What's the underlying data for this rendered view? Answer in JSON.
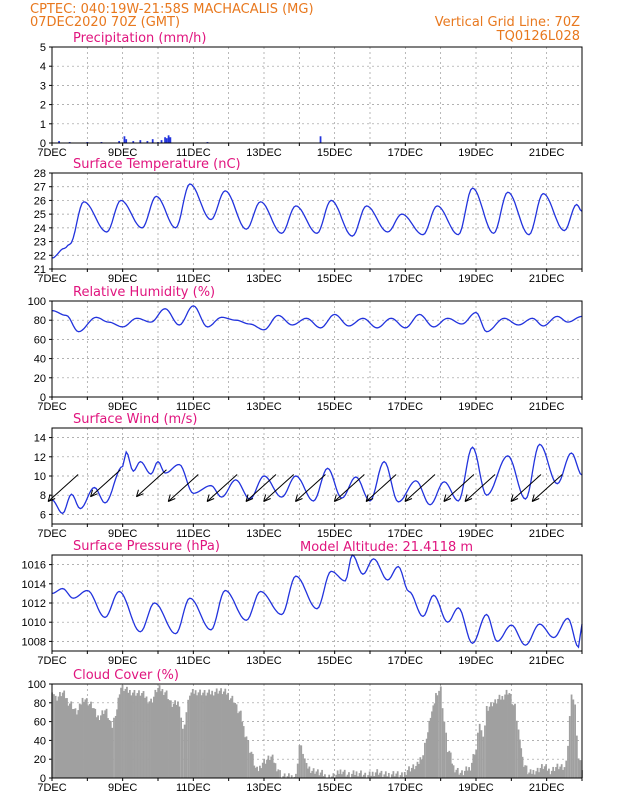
{
  "header": {
    "station": "CPTEC:   040:19W-21:58S   MACHACALIS (MG)",
    "date": "07DEC2020 70Z (GMT)",
    "grid_info": "Vertical Grid Line: 70Z",
    "model_code": "TQ0126L028",
    "model_altitude": "Model Altitude: 21.4118 m"
  },
  "colors": {
    "header": "#e8781e",
    "title": "#e0147e",
    "line": "#2233dd",
    "cloud": "#a0a0a0"
  },
  "x_axis": {
    "day_start": 7,
    "day_end": 22,
    "labels": [
      "7DEC",
      "9DEC",
      "11DEC",
      "13DEC",
      "15DEC",
      "17DEC",
      "19DEC",
      "21DEC"
    ]
  },
  "chart_data": [
    {
      "id": "precip",
      "type": "bar",
      "title": "Precipitation (mm/h)",
      "ylim": [
        0,
        5
      ],
      "yticks": [
        0,
        1,
        2,
        3,
        4,
        5
      ],
      "points": [
        [
          7.2,
          0.1
        ],
        [
          7.5,
          0.05
        ],
        [
          8.0,
          0.05
        ],
        [
          8.4,
          0.05
        ],
        [
          8.9,
          0.1
        ],
        [
          9.05,
          0.35
        ],
        [
          9.1,
          0.2
        ],
        [
          9.3,
          0.1
        ],
        [
          9.5,
          0.15
        ],
        [
          9.7,
          0.1
        ],
        [
          9.85,
          0.2
        ],
        [
          10.0,
          0.05
        ],
        [
          10.1,
          0.15
        ],
        [
          10.2,
          0.3
        ],
        [
          10.25,
          0.25
        ],
        [
          10.3,
          0.4
        ],
        [
          10.35,
          0.3
        ],
        [
          11.4,
          0.05
        ],
        [
          14.6,
          0.35
        ]
      ]
    },
    {
      "id": "temp",
      "type": "line",
      "title": "Surface Temperature (nC)",
      "ylim": [
        21,
        28
      ],
      "yticks": [
        21,
        22,
        23,
        24,
        25,
        26,
        27,
        28
      ],
      "peaks": [
        [
          7.0,
          21.8
        ],
        [
          7.35,
          22.5
        ],
        [
          7.5,
          22.8
        ],
        [
          7.9,
          25.9
        ],
        [
          8.55,
          23.7
        ],
        [
          8.95,
          26.0
        ],
        [
          9.55,
          24.0
        ],
        [
          9.95,
          26.3
        ],
        [
          10.5,
          24.0
        ],
        [
          10.9,
          27.2
        ],
        [
          11.5,
          24.6
        ],
        [
          11.9,
          26.7
        ],
        [
          12.5,
          23.9
        ],
        [
          12.9,
          25.9
        ],
        [
          13.5,
          23.6
        ],
        [
          13.9,
          25.6
        ],
        [
          14.5,
          23.6
        ],
        [
          14.9,
          26.0
        ],
        [
          15.5,
          23.4
        ],
        [
          15.9,
          25.6
        ],
        [
          16.5,
          23.7
        ],
        [
          16.9,
          25.0
        ],
        [
          17.5,
          23.5
        ],
        [
          17.9,
          25.6
        ],
        [
          18.5,
          23.5
        ],
        [
          18.9,
          26.9
        ],
        [
          19.5,
          23.6
        ],
        [
          19.9,
          26.6
        ],
        [
          20.5,
          23.5
        ],
        [
          20.9,
          26.5
        ],
        [
          21.5,
          23.8
        ],
        [
          21.85,
          25.7
        ],
        [
          22.0,
          25.2
        ]
      ]
    },
    {
      "id": "rh",
      "type": "line",
      "title": "Relative Humidity (%)",
      "ylim": [
        0,
        100
      ],
      "yticks": [
        0,
        20,
        40,
        60,
        80,
        100
      ],
      "peaks": [
        [
          7.0,
          90
        ],
        [
          7.4,
          85
        ],
        [
          7.75,
          68
        ],
        [
          8.25,
          83
        ],
        [
          8.6,
          78
        ],
        [
          9.0,
          73
        ],
        [
          9.4,
          82
        ],
        [
          9.8,
          78
        ],
        [
          10.2,
          92
        ],
        [
          10.6,
          75
        ],
        [
          11.0,
          95
        ],
        [
          11.4,
          73
        ],
        [
          11.8,
          83
        ],
        [
          12.2,
          80
        ],
        [
          12.6,
          76
        ],
        [
          13.0,
          70
        ],
        [
          13.4,
          85
        ],
        [
          13.8,
          75
        ],
        [
          14.2,
          82
        ],
        [
          14.6,
          72
        ],
        [
          15.0,
          86
        ],
        [
          15.4,
          74
        ],
        [
          15.8,
          82
        ],
        [
          16.2,
          72
        ],
        [
          16.6,
          82
        ],
        [
          17.0,
          72
        ],
        [
          17.4,
          86
        ],
        [
          17.8,
          73
        ],
        [
          18.2,
          82
        ],
        [
          18.6,
          76
        ],
        [
          19.0,
          88
        ],
        [
          19.3,
          68
        ],
        [
          19.8,
          82
        ],
        [
          20.2,
          75
        ],
        [
          20.6,
          82
        ],
        [
          20.9,
          74
        ],
        [
          21.3,
          84
        ],
        [
          21.6,
          78
        ],
        [
          22.0,
          84
        ]
      ]
    },
    {
      "id": "wind",
      "type": "line",
      "title": "Surface Wind (m/s)",
      "ylim": [
        5,
        15
      ],
      "yticks": [
        6,
        8,
        10,
        12,
        14
      ],
      "peaks": [
        [
          7.0,
          7.5
        ],
        [
          7.3,
          6.1
        ],
        [
          7.55,
          8.1
        ],
        [
          7.8,
          6.6
        ],
        [
          8.2,
          8.8
        ],
        [
          8.5,
          7.2
        ],
        [
          9.0,
          11.0
        ],
        [
          9.1,
          12.5
        ],
        [
          9.3,
          10.5
        ],
        [
          9.5,
          11.5
        ],
        [
          9.8,
          10.2
        ],
        [
          10.0,
          11.5
        ],
        [
          10.2,
          10.3
        ],
        [
          10.6,
          11.2
        ],
        [
          11.0,
          8.2
        ],
        [
          11.5,
          9.0
        ],
        [
          11.8,
          7.8
        ],
        [
          12.2,
          9.6
        ],
        [
          12.6,
          7.6
        ],
        [
          13.0,
          10.0
        ],
        [
          13.5,
          7.8
        ],
        [
          13.9,
          10.0
        ],
        [
          14.4,
          7.4
        ],
        [
          14.8,
          10.8
        ],
        [
          15.2,
          7.7
        ],
        [
          15.6,
          9.9
        ],
        [
          16.0,
          7.4
        ],
        [
          16.4,
          11.5
        ],
        [
          16.8,
          7.3
        ],
        [
          17.3,
          9.5
        ],
        [
          17.7,
          7.0
        ],
        [
          18.1,
          9.4
        ],
        [
          18.5,
          7.4
        ],
        [
          18.9,
          13.0
        ],
        [
          19.3,
          8.0
        ],
        [
          19.9,
          12.1
        ],
        [
          20.4,
          7.6
        ],
        [
          20.8,
          13.3
        ],
        [
          21.3,
          9.2
        ],
        [
          21.7,
          12.4
        ],
        [
          22.0,
          10.1
        ]
      ],
      "arrows": [
        [
          7.4,
          8.8
        ],
        [
          8.6,
          9.3
        ],
        [
          9.9,
          9.3
        ],
        [
          10.8,
          8.8
        ],
        [
          11.9,
          8.8
        ],
        [
          13.0,
          8.8
        ],
        [
          13.5,
          8.8
        ],
        [
          14.4,
          8.8
        ],
        [
          15.5,
          8.8
        ],
        [
          16.4,
          8.8
        ],
        [
          17.5,
          8.8
        ],
        [
          18.6,
          8.8
        ],
        [
          19.2,
          8.8
        ],
        [
          20.5,
          8.8
        ],
        [
          21.1,
          8.8
        ]
      ]
    },
    {
      "id": "press",
      "type": "line",
      "title": "Surface Pressure (hPa)",
      "ylim": [
        1007,
        1017
      ],
      "yticks": [
        1008,
        1010,
        1012,
        1014,
        1016
      ],
      "peaks": [
        [
          7.0,
          1013.0
        ],
        [
          7.3,
          1013.5
        ],
        [
          7.6,
          1012.5
        ],
        [
          8.0,
          1013.3
        ],
        [
          8.5,
          1010.5
        ],
        [
          8.9,
          1013.2
        ],
        [
          9.5,
          1009.0
        ],
        [
          9.9,
          1012.0
        ],
        [
          10.5,
          1008.8
        ],
        [
          10.9,
          1012.5
        ],
        [
          11.5,
          1009.2
        ],
        [
          11.9,
          1013.3
        ],
        [
          12.5,
          1010.2
        ],
        [
          12.9,
          1013.2
        ],
        [
          13.5,
          1010.8
        ],
        [
          13.9,
          1014.8
        ],
        [
          14.5,
          1011.4
        ],
        [
          14.9,
          1015.3
        ],
        [
          15.3,
          1014.3
        ],
        [
          15.5,
          1017.0
        ],
        [
          15.8,
          1015.0
        ],
        [
          16.1,
          1016.6
        ],
        [
          16.5,
          1014.4
        ],
        [
          16.8,
          1015.8
        ],
        [
          17.1,
          1013.2
        ],
        [
          17.5,
          1010.6
        ],
        [
          17.8,
          1012.8
        ],
        [
          18.2,
          1010.0
        ],
        [
          18.5,
          1011.5
        ],
        [
          18.9,
          1007.8
        ],
        [
          19.3,
          1010.8
        ],
        [
          19.6,
          1008.0
        ],
        [
          20.0,
          1009.7
        ],
        [
          20.4,
          1007.6
        ],
        [
          20.8,
          1009.8
        ],
        [
          21.2,
          1008.4
        ],
        [
          21.6,
          1010.4
        ],
        [
          21.9,
          1007.4
        ],
        [
          22.0,
          1009.8
        ]
      ]
    },
    {
      "id": "cloud",
      "type": "area",
      "title": "Cloud Cover (%)",
      "ylim": [
        0,
        100
      ],
      "yticks": [
        0,
        20,
        40,
        60,
        80,
        100
      ],
      "points": [
        [
          7.0,
          95
        ],
        [
          7.1,
          85
        ],
        [
          7.3,
          90
        ],
        [
          7.5,
          80
        ],
        [
          7.7,
          70
        ],
        [
          7.9,
          85
        ],
        [
          8.1,
          78
        ],
        [
          8.3,
          65
        ],
        [
          8.5,
          72
        ],
        [
          8.7,
          55
        ],
        [
          8.8,
          70
        ],
        [
          8.95,
          96
        ],
        [
          9.2,
          92
        ],
        [
          9.5,
          90
        ],
        [
          9.8,
          82
        ],
        [
          10.0,
          95
        ],
        [
          10.2,
          92
        ],
        [
          10.4,
          78
        ],
        [
          10.6,
          80
        ],
        [
          10.7,
          50
        ],
        [
          10.8,
          70
        ],
        [
          10.9,
          90
        ],
        [
          11.1,
          92
        ],
        [
          11.4,
          90
        ],
        [
          11.7,
          93
        ],
        [
          11.9,
          91
        ],
        [
          12.1,
          85
        ],
        [
          12.3,
          70
        ],
        [
          12.5,
          45
        ],
        [
          12.6,
          30
        ],
        [
          12.8,
          8
        ],
        [
          13.0,
          18
        ],
        [
          13.2,
          22
        ],
        [
          13.4,
          10
        ],
        [
          13.5,
          2
        ],
        [
          13.7,
          1
        ],
        [
          13.9,
          2
        ],
        [
          14.0,
          35
        ],
        [
          14.1,
          28
        ],
        [
          14.2,
          12
        ],
        [
          14.4,
          8
        ],
        [
          14.6,
          5
        ],
        [
          14.8,
          1
        ],
        [
          15.0,
          2
        ],
        [
          15.2,
          8
        ],
        [
          15.4,
          3
        ],
        [
          15.7,
          6
        ],
        [
          15.9,
          2
        ],
        [
          16.2,
          7
        ],
        [
          16.4,
          3
        ],
        [
          16.7,
          5
        ],
        [
          16.9,
          2
        ],
        [
          17.1,
          10
        ],
        [
          17.3,
          12
        ],
        [
          17.5,
          25
        ],
        [
          17.6,
          45
        ],
        [
          17.75,
          70
        ],
        [
          17.9,
          92
        ],
        [
          18.0,
          95
        ],
        [
          18.1,
          60
        ],
        [
          18.2,
          30
        ],
        [
          18.4,
          10
        ],
        [
          18.6,
          5
        ],
        [
          18.8,
          10
        ],
        [
          19.0,
          30
        ],
        [
          19.1,
          60
        ],
        [
          19.2,
          40
        ],
        [
          19.3,
          75
        ],
        [
          19.5,
          80
        ],
        [
          19.7,
          85
        ],
        [
          19.9,
          92
        ],
        [
          20.1,
          75
        ],
        [
          20.2,
          50
        ],
        [
          20.35,
          15
        ],
        [
          20.5,
          5
        ],
        [
          20.7,
          8
        ],
        [
          20.9,
          12
        ],
        [
          21.1,
          8
        ],
        [
          21.3,
          12
        ],
        [
          21.5,
          10
        ],
        [
          21.6,
          35
        ],
        [
          21.7,
          92
        ],
        [
          21.8,
          75
        ],
        [
          21.9,
          20
        ],
        [
          22.0,
          10
        ]
      ]
    }
  ]
}
